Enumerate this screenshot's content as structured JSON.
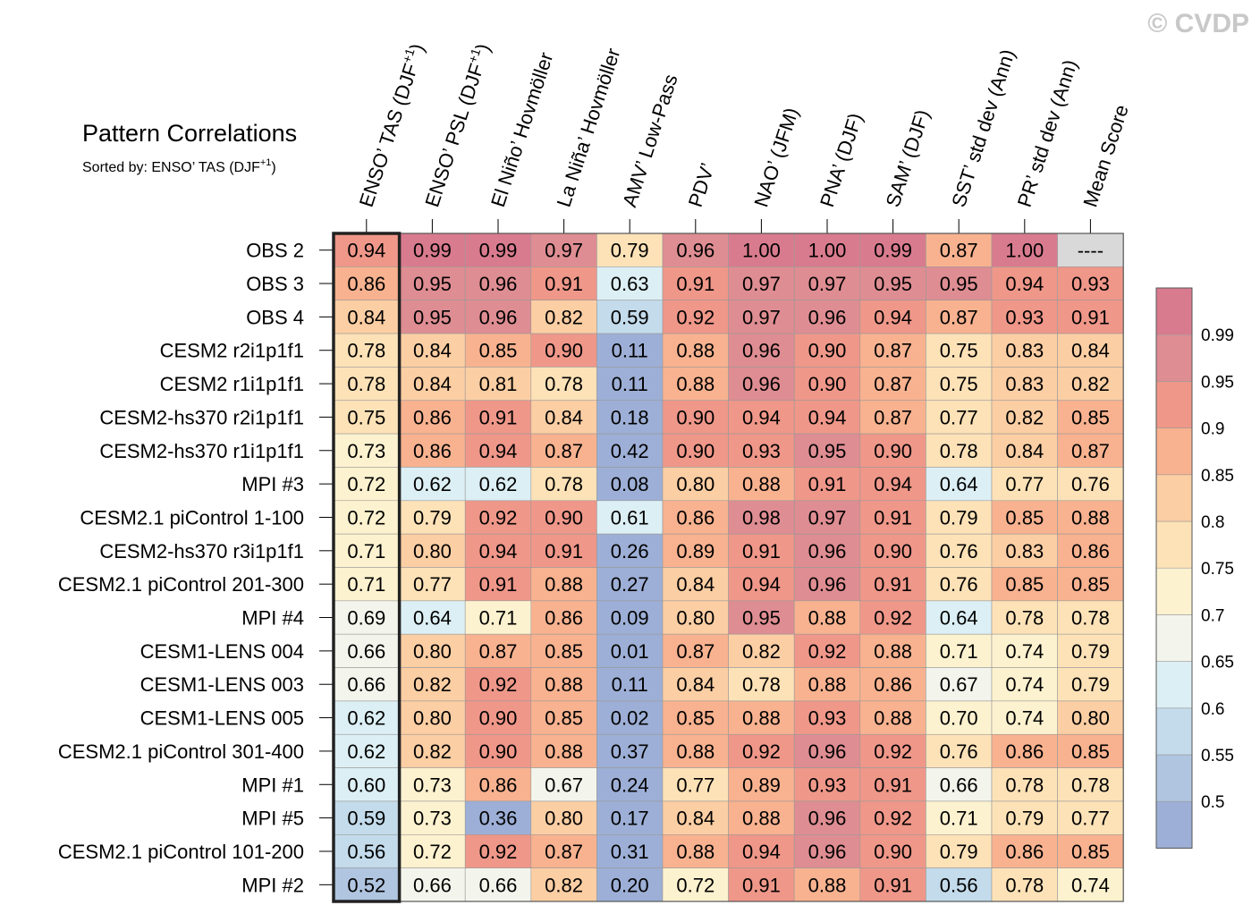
{
  "watermark": "© CVDP",
  "chart_data": {
    "type": "heatmap",
    "title": "Pattern Correlations",
    "subtitle": "Sorted by: ENSO’ TAS (DJF",
    "subtitle_sup": "+1",
    "subtitle_end": ")",
    "highlight_column": 0,
    "columns": [
      {
        "label": "ENSO’ TAS (DJF",
        "sup": "+1",
        "end": ")"
      },
      {
        "label": "ENSO’ PSL (DJF",
        "sup": "+1",
        "end": ")"
      },
      {
        "label": "El Niño’ Hovmöller",
        "sup": "",
        "end": ""
      },
      {
        "label": "La Niña’ Hovmöller",
        "sup": "",
        "end": ""
      },
      {
        "label": "AMV’ Low-Pass",
        "sup": "",
        "end": ""
      },
      {
        "label": "PDV’",
        "sup": "",
        "end": ""
      },
      {
        "label": "NAO’ (JFM)",
        "sup": "",
        "end": ""
      },
      {
        "label": "PNA’ (DJF)",
        "sup": "",
        "end": ""
      },
      {
        "label": "SAM’ (DJF)",
        "sup": "",
        "end": ""
      },
      {
        "label": "SST’ std dev (Ann)",
        "sup": "",
        "end": ""
      },
      {
        "label": "PR’ std dev (Ann)",
        "sup": "",
        "end": ""
      },
      {
        "label": "Mean Score",
        "sup": "",
        "end": ""
      }
    ],
    "rows": [
      "OBS 2",
      "OBS 3",
      "OBS 4",
      "CESM2 r2i1p1f1",
      "CESM2 r1i1p1f1",
      "CESM2-hs370 r2i1p1f1",
      "CESM2-hs370 r1i1p1f1",
      "MPI #3",
      "CESM2.1 piControl 1-100",
      "CESM2-hs370 r3i1p1f1",
      "CESM2.1 piControl 201-300",
      "MPI #4",
      "CESM1-LENS 004",
      "CESM1-LENS 003",
      "CESM1-LENS 005",
      "CESM2.1 piControl 301-400",
      "MPI #1",
      "MPI #5",
      "CESM2.1 piControl 101-200",
      "MPI #2"
    ],
    "values": [
      [
        "0.94",
        "0.99",
        "0.99",
        "0.97",
        "0.79",
        "0.96",
        "1.00",
        "1.00",
        "0.99",
        "0.87",
        "1.00",
        "----"
      ],
      [
        "0.86",
        "0.95",
        "0.96",
        "0.91",
        "0.63",
        "0.91",
        "0.97",
        "0.97",
        "0.95",
        "0.95",
        "0.94",
        "0.93"
      ],
      [
        "0.84",
        "0.95",
        "0.96",
        "0.82",
        "0.59",
        "0.92",
        "0.97",
        "0.96",
        "0.94",
        "0.87",
        "0.93",
        "0.91"
      ],
      [
        "0.78",
        "0.84",
        "0.85",
        "0.90",
        "0.11",
        "0.88",
        "0.96",
        "0.90",
        "0.87",
        "0.75",
        "0.83",
        "0.84"
      ],
      [
        "0.78",
        "0.84",
        "0.81",
        "0.78",
        "0.11",
        "0.88",
        "0.96",
        "0.90",
        "0.87",
        "0.75",
        "0.83",
        "0.82"
      ],
      [
        "0.75",
        "0.86",
        "0.91",
        "0.84",
        "0.18",
        "0.90",
        "0.94",
        "0.94",
        "0.87",
        "0.77",
        "0.82",
        "0.85"
      ],
      [
        "0.73",
        "0.86",
        "0.94",
        "0.87",
        "0.42",
        "0.90",
        "0.93",
        "0.95",
        "0.90",
        "0.78",
        "0.84",
        "0.87"
      ],
      [
        "0.72",
        "0.62",
        "0.62",
        "0.78",
        "0.08",
        "0.80",
        "0.88",
        "0.91",
        "0.94",
        "0.64",
        "0.77",
        "0.76"
      ],
      [
        "0.72",
        "0.79",
        "0.92",
        "0.90",
        "0.61",
        "0.86",
        "0.98",
        "0.97",
        "0.91",
        "0.79",
        "0.85",
        "0.88"
      ],
      [
        "0.71",
        "0.80",
        "0.94",
        "0.91",
        "0.26",
        "0.89",
        "0.91",
        "0.96",
        "0.90",
        "0.76",
        "0.83",
        "0.86"
      ],
      [
        "0.71",
        "0.77",
        "0.91",
        "0.88",
        "0.27",
        "0.84",
        "0.94",
        "0.96",
        "0.91",
        "0.76",
        "0.85",
        "0.85"
      ],
      [
        "0.69",
        "0.64",
        "0.71",
        "0.86",
        "0.09",
        "0.80",
        "0.95",
        "0.88",
        "0.92",
        "0.64",
        "0.78",
        "0.78"
      ],
      [
        "0.66",
        "0.80",
        "0.87",
        "0.85",
        "0.01",
        "0.87",
        "0.82",
        "0.92",
        "0.88",
        "0.71",
        "0.74",
        "0.79"
      ],
      [
        "0.66",
        "0.82",
        "0.92",
        "0.88",
        "0.11",
        "0.84",
        "0.78",
        "0.88",
        "0.86",
        "0.67",
        "0.74",
        "0.79"
      ],
      [
        "0.62",
        "0.80",
        "0.90",
        "0.85",
        "0.02",
        "0.85",
        "0.88",
        "0.93",
        "0.88",
        "0.70",
        "0.74",
        "0.80"
      ],
      [
        "0.62",
        "0.82",
        "0.90",
        "0.88",
        "0.37",
        "0.88",
        "0.92",
        "0.96",
        "0.92",
        "0.76",
        "0.86",
        "0.85"
      ],
      [
        "0.60",
        "0.73",
        "0.86",
        "0.67",
        "0.24",
        "0.77",
        "0.89",
        "0.93",
        "0.91",
        "0.66",
        "0.78",
        "0.78"
      ],
      [
        "0.59",
        "0.73",
        "0.36",
        "0.80",
        "0.17",
        "0.84",
        "0.88",
        "0.96",
        "0.92",
        "0.71",
        "0.79",
        "0.77"
      ],
      [
        "0.56",
        "0.72",
        "0.92",
        "0.87",
        "0.31",
        "0.88",
        "0.94",
        "0.96",
        "0.90",
        "0.79",
        "0.86",
        "0.85"
      ],
      [
        "0.52",
        "0.66",
        "0.66",
        "0.82",
        "0.20",
        "0.72",
        "0.91",
        "0.88",
        "0.91",
        "0.56",
        "0.78",
        "0.74"
      ]
    ],
    "missing_color": "#d9d9d9",
    "colorbar": {
      "levels": [
        0.5,
        0.55,
        0.6,
        0.65,
        0.7,
        0.75,
        0.8,
        0.85,
        0.9,
        0.95,
        0.99
      ],
      "labels": [
        "0.5",
        "0.55",
        "0.6",
        "0.65",
        "0.7",
        "0.75",
        "0.8",
        "0.85",
        "0.9",
        "0.95",
        "0.99"
      ],
      "colors": [
        "#9dafd6",
        "#b0c5e0",
        "#c3dbeb",
        "#dceff4",
        "#f3f5ec",
        "#fdf2cf",
        "#fde2b7",
        "#fccea3",
        "#f8b28f",
        "#ef9789",
        "#de8d92",
        "#d97b8e"
      ]
    }
  }
}
